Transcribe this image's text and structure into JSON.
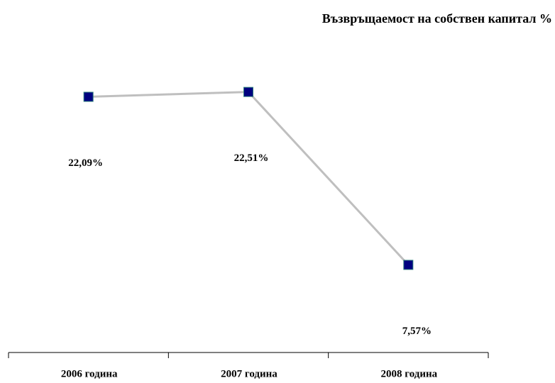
{
  "chart_data": {
    "type": "line",
    "title": "Възвръщаемост на собствен капитал %",
    "categories": [
      "2006 година",
      "2007 година",
      "2008 година"
    ],
    "series": [
      {
        "color": "#bfbfbf",
        "marker_color": "#000080",
        "values": [
          22.09,
          22.51,
          7.57
        ],
        "value_labels": [
          "22,09%",
          "22,51%",
          "7,57%"
        ]
      }
    ]
  }
}
